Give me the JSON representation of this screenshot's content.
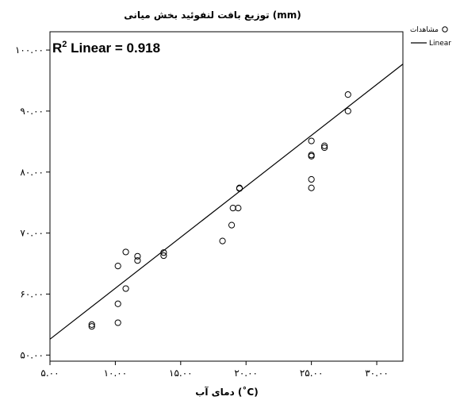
{
  "chart_data": {
    "type": "scatter",
    "title": "توزیع بافت لنفوئید بخش میانی (mm)",
    "xlabel": "دمای آب (˚C)",
    "ylabel": "",
    "xlim": [
      5,
      32
    ],
    "ylim": [
      49,
      103
    ],
    "x_ticks": [
      5,
      10,
      15,
      20,
      25,
      30
    ],
    "y_ticks": [
      50,
      60,
      70,
      80,
      90,
      100
    ],
    "x_tick_labels": [
      "۵.۰۰",
      "۱۰.۰۰",
      "۱۵.۰۰",
      "۲۰.۰۰",
      "۲۵.۰۰",
      "۳۰.۰۰"
    ],
    "y_tick_labels": [
      "۵۰.۰۰",
      "۶۰.۰۰",
      "۷۰.۰۰",
      "۸۰.۰۰",
      "۹۰.۰۰",
      "۱۰۰.۰۰"
    ],
    "annotation": "R² Linear = 0.918",
    "r2_parts": {
      "prefix": "R",
      "sup": "2",
      "suffix": " Linear = 0.918"
    },
    "grid": false,
    "legend_position": "outside-top-right",
    "series": [
      {
        "name": "مشاهدات",
        "kind": "scatter",
        "marker": "open-circle",
        "color": "#000000",
        "x": [
          8.2,
          8.2,
          10.2,
          10.2,
          10.2,
          10.8,
          10.8,
          11.7,
          11.7,
          13.7,
          13.7,
          18.2,
          18.9,
          19.0,
          19.4,
          19.5,
          19.5,
          25.0,
          25.0,
          25.0,
          25.0,
          25.0,
          26.0,
          26.0,
          27.8,
          27.8
        ],
        "y": [
          54.7,
          55.0,
          55.3,
          58.4,
          64.6,
          60.9,
          66.9,
          65.5,
          66.2,
          66.3,
          66.8,
          68.7,
          71.3,
          74.1,
          74.1,
          77.3,
          77.4,
          77.4,
          78.8,
          82.6,
          82.8,
          85.1,
          84.0,
          84.3,
          90.0,
          92.7
        ]
      },
      {
        "name": "Linear",
        "kind": "line",
        "color": "#000000",
        "x": [
          5,
          32
        ],
        "y": [
          52.6,
          97.7
        ]
      }
    ]
  }
}
